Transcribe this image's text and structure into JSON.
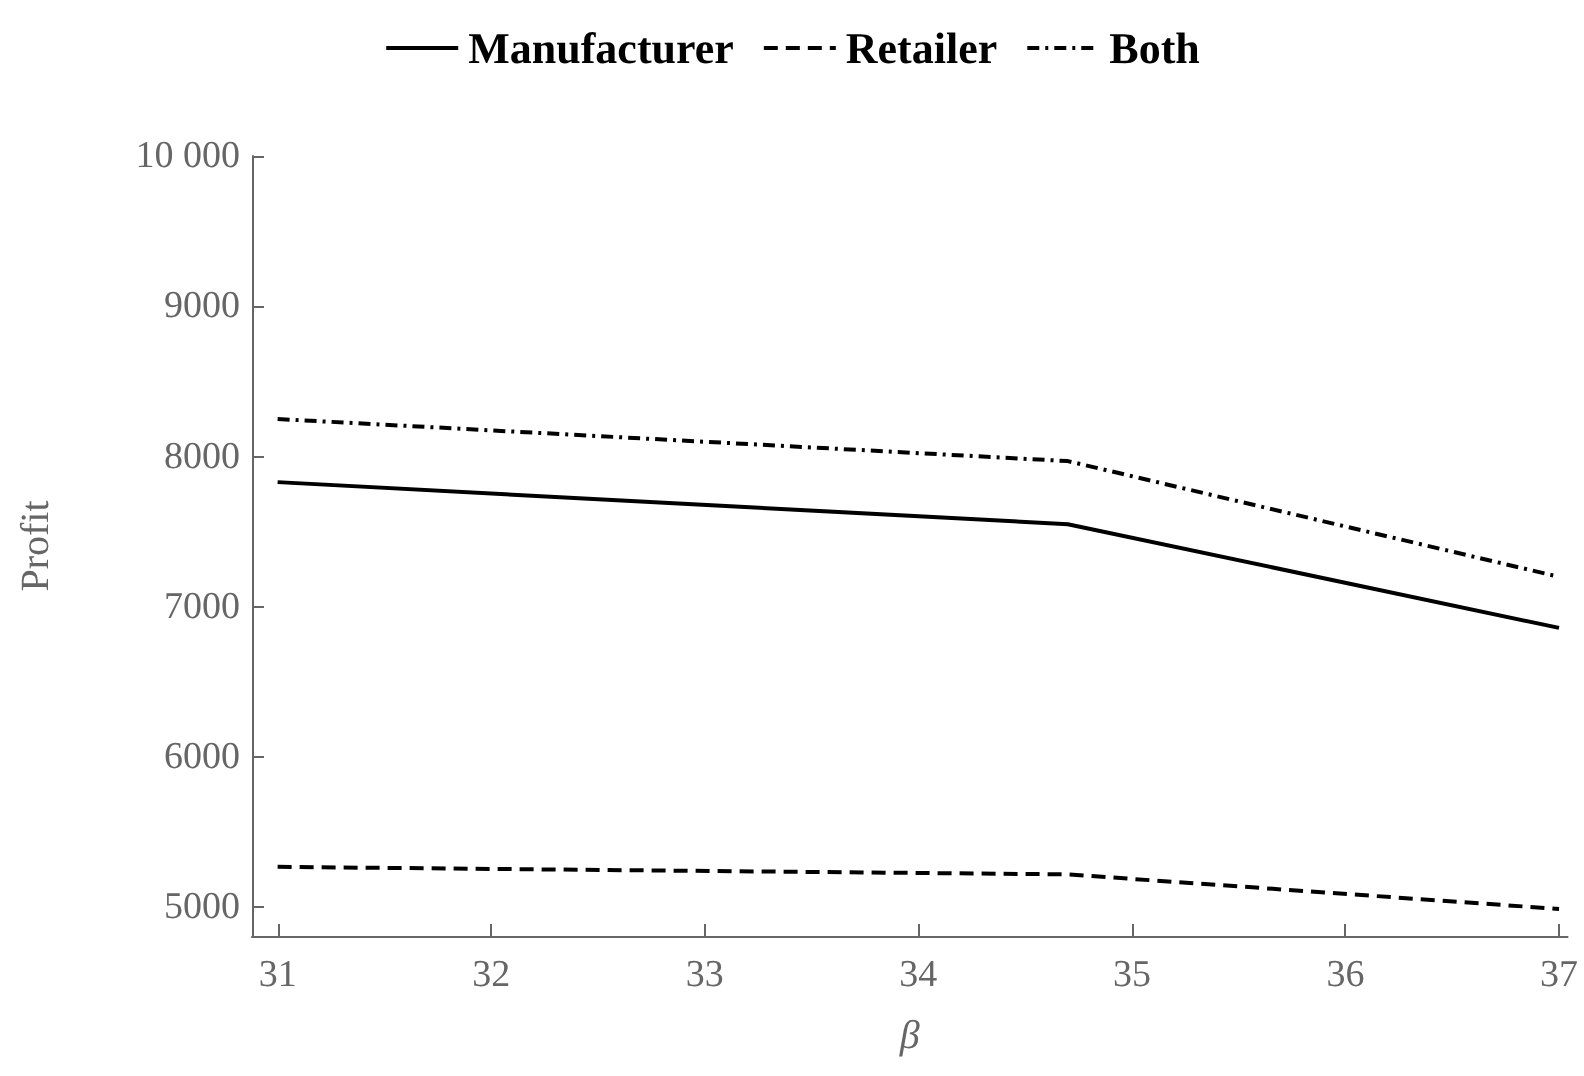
{
  "chart_data": {
    "type": "line",
    "xlabel": "β",
    "ylabel": "Profit",
    "xlim": [
      30.88,
      37.04
    ],
    "xticks": [
      31,
      32,
      33,
      34,
      35,
      36,
      37
    ],
    "ylim": [
      4810,
      10000
    ],
    "yticks": [
      5000,
      6000,
      7000,
      8000,
      9000,
      {
        "value": 10000,
        "label": "10 000"
      }
    ],
    "x": [
      31,
      34.7,
      37
    ],
    "series": [
      {
        "name": "Manufacturer",
        "color": "#000000",
        "line_style": "solid",
        "values": [
          7830,
          7550,
          6860
        ]
      },
      {
        "name": "Retailer",
        "color": "#000000",
        "line_style": "dashed",
        "values": [
          5270,
          5220,
          4990
        ]
      },
      {
        "name": "Both",
        "color": "#000000",
        "line_style": "dotted",
        "values": [
          8250,
          7970,
          7200
        ]
      }
    ],
    "legend": "top",
    "grid": false,
    "marker": "none"
  }
}
